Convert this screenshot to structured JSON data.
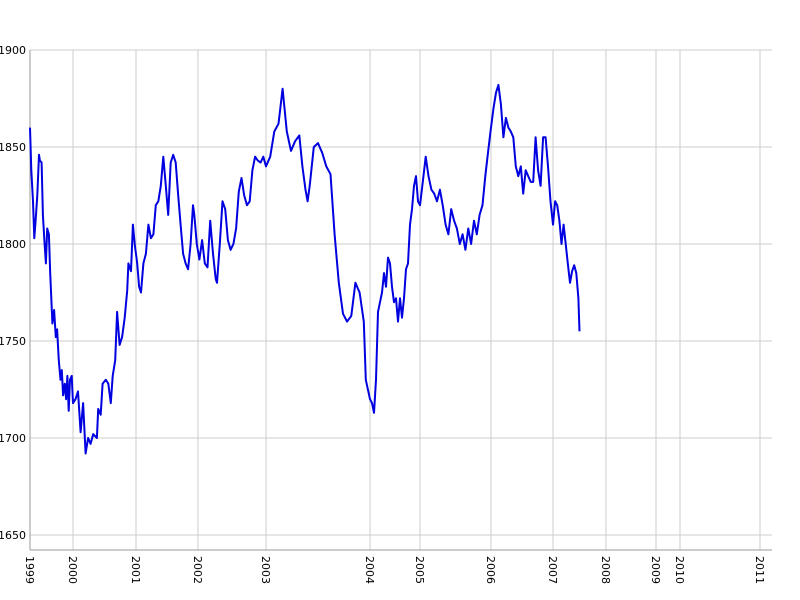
{
  "chart_data": {
    "type": "line",
    "title": "",
    "xlabel": "",
    "ylabel": "",
    "ylim": [
      1645,
      1900
    ],
    "y_ticks": [
      1650,
      1700,
      1750,
      1800,
      1850,
      1900
    ],
    "x_ticks": [
      {
        "x": 1999.0,
        "label": "1999"
      },
      {
        "x": 2000.0,
        "label": "2000"
      },
      {
        "x": 2001.0,
        "label": "2001"
      },
      {
        "x": 2002.0,
        "label": "2002"
      },
      {
        "x": 2003.0,
        "label": "2003"
      },
      {
        "x": 2004.0,
        "label": "2004"
      },
      {
        "x": 2005.0,
        "label": "2005"
      },
      {
        "x": 2006.0,
        "label": "2006"
      },
      {
        "x": 2007.0,
        "label": "2007"
      },
      {
        "x": 2008.0,
        "label": "2008"
      },
      {
        "x": 2009.0,
        "label": "2009"
      },
      {
        "x": 2010.0,
        "label": "2010"
      },
      {
        "x": 2011.0,
        "label": "2011"
      }
    ],
    "grid": true,
    "line_color": "#0000e0",
    "grid_color": "#cccccc",
    "series": [
      {
        "points": [
          [
            1999.0,
            1860
          ],
          [
            1999.03,
            1838
          ],
          [
            1999.07,
            1822
          ],
          [
            1999.1,
            1803
          ],
          [
            1999.13,
            1812
          ],
          [
            1999.17,
            1825
          ],
          [
            1999.21,
            1846
          ],
          [
            1999.23,
            1843
          ],
          [
            1999.27,
            1842
          ],
          [
            1999.3,
            1815
          ],
          [
            1999.34,
            1800
          ],
          [
            1999.37,
            1790
          ],
          [
            1999.4,
            1808
          ],
          [
            1999.44,
            1805
          ],
          [
            1999.47,
            1785
          ],
          [
            1999.52,
            1759
          ],
          [
            1999.56,
            1766
          ],
          [
            1999.6,
            1752
          ],
          [
            1999.63,
            1756
          ],
          [
            1999.67,
            1740
          ],
          [
            1999.71,
            1730
          ],
          [
            1999.74,
            1735
          ],
          [
            1999.77,
            1722
          ],
          [
            1999.81,
            1728
          ],
          [
            1999.84,
            1720
          ],
          [
            1999.87,
            1732
          ],
          [
            1999.9,
            1714
          ],
          [
            1999.93,
            1730
          ],
          [
            1999.97,
            1732
          ],
          [
            2000.0,
            1718
          ],
          [
            2000.04,
            1720
          ],
          [
            2000.08,
            1724
          ],
          [
            2000.12,
            1703
          ],
          [
            2000.16,
            1718
          ],
          [
            2000.2,
            1692
          ],
          [
            2000.24,
            1700
          ],
          [
            2000.28,
            1697
          ],
          [
            2000.32,
            1702
          ],
          [
            2000.38,
            1700
          ],
          [
            2000.4,
            1715
          ],
          [
            2000.44,
            1712
          ],
          [
            2000.47,
            1728
          ],
          [
            2000.52,
            1730
          ],
          [
            2000.56,
            1728
          ],
          [
            2000.6,
            1718
          ],
          [
            2000.63,
            1732
          ],
          [
            2000.67,
            1740
          ],
          [
            2000.7,
            1765
          ],
          [
            2000.74,
            1748
          ],
          [
            2000.78,
            1752
          ],
          [
            2000.82,
            1762
          ],
          [
            2000.86,
            1776
          ],
          [
            2000.88,
            1790
          ],
          [
            2000.92,
            1786
          ],
          [
            2000.95,
            1810
          ],
          [
            2000.98,
            1800
          ],
          [
            2001.02,
            1790
          ],
          [
            2001.05,
            1778
          ],
          [
            2001.08,
            1775
          ],
          [
            2001.12,
            1790
          ],
          [
            2001.16,
            1795
          ],
          [
            2001.2,
            1810
          ],
          [
            2001.24,
            1803
          ],
          [
            2001.28,
            1805
          ],
          [
            2001.32,
            1820
          ],
          [
            2001.36,
            1822
          ],
          [
            2001.4,
            1830
          ],
          [
            2001.44,
            1845
          ],
          [
            2001.48,
            1830
          ],
          [
            2001.52,
            1815
          ],
          [
            2001.56,
            1842
          ],
          [
            2001.6,
            1846
          ],
          [
            2001.64,
            1842
          ],
          [
            2001.68,
            1825
          ],
          [
            2001.72,
            1810
          ],
          [
            2001.76,
            1795
          ],
          [
            2001.8,
            1790
          ],
          [
            2001.84,
            1787
          ],
          [
            2001.88,
            1800
          ],
          [
            2001.92,
            1820
          ],
          [
            2001.94,
            1815
          ],
          [
            2001.98,
            1800
          ],
          [
            2002.02,
            1792
          ],
          [
            2002.06,
            1802
          ],
          [
            2002.1,
            1790
          ],
          [
            2002.14,
            1788
          ],
          [
            2002.18,
            1812
          ],
          [
            2002.22,
            1795
          ],
          [
            2002.26,
            1782
          ],
          [
            2002.28,
            1780
          ],
          [
            2002.32,
            1800
          ],
          [
            2002.36,
            1822
          ],
          [
            2002.4,
            1818
          ],
          [
            2002.44,
            1802
          ],
          [
            2002.48,
            1797
          ],
          [
            2002.52,
            1800
          ],
          [
            2002.56,
            1808
          ],
          [
            2002.6,
            1827
          ],
          [
            2002.64,
            1834
          ],
          [
            2002.68,
            1825
          ],
          [
            2002.72,
            1820
          ],
          [
            2002.76,
            1822
          ],
          [
            2002.8,
            1838
          ],
          [
            2002.84,
            1845
          ],
          [
            2002.88,
            1843
          ],
          [
            2002.92,
            1842
          ],
          [
            2002.96,
            1845
          ],
          [
            2003.0,
            1840
          ],
          [
            2003.04,
            1845
          ],
          [
            2003.08,
            1858
          ],
          [
            2003.12,
            1862
          ],
          [
            2003.16,
            1880
          ],
          [
            2003.2,
            1858
          ],
          [
            2003.24,
            1848
          ],
          [
            2003.28,
            1853
          ],
          [
            2003.32,
            1856
          ],
          [
            2003.35,
            1840
          ],
          [
            2003.38,
            1828
          ],
          [
            2003.4,
            1822
          ],
          [
            2003.42,
            1830
          ],
          [
            2003.46,
            1850
          ],
          [
            2003.5,
            1852
          ],
          [
            2003.54,
            1847
          ],
          [
            2003.58,
            1840
          ],
          [
            2003.62,
            1836
          ],
          [
            2003.66,
            1805
          ],
          [
            2003.7,
            1780
          ],
          [
            2003.74,
            1764
          ],
          [
            2003.78,
            1760
          ],
          [
            2003.82,
            1763
          ],
          [
            2003.86,
            1780
          ],
          [
            2003.9,
            1775
          ],
          [
            2003.94,
            1760
          ],
          [
            2003.96,
            1730
          ],
          [
            2004.0,
            1720
          ],
          [
            2004.04,
            1718
          ],
          [
            2004.08,
            1713
          ],
          [
            2004.12,
            1730
          ],
          [
            2004.16,
            1765
          ],
          [
            2004.2,
            1770
          ],
          [
            2004.24,
            1775
          ],
          [
            2004.28,
            1785
          ],
          [
            2004.32,
            1778
          ],
          [
            2004.36,
            1793
          ],
          [
            2004.4,
            1790
          ],
          [
            2004.44,
            1778
          ],
          [
            2004.48,
            1770
          ],
          [
            2004.52,
            1772
          ],
          [
            2004.56,
            1760
          ],
          [
            2004.6,
            1772
          ],
          [
            2004.64,
            1762
          ],
          [
            2004.68,
            1772
          ],
          [
            2004.72,
            1787
          ],
          [
            2004.76,
            1790
          ],
          [
            2004.8,
            1810
          ],
          [
            2004.84,
            1818
          ],
          [
            2004.88,
            1830
          ],
          [
            2004.92,
            1835
          ],
          [
            2004.96,
            1822
          ],
          [
            2005.0,
            1820
          ],
          [
            2005.04,
            1832
          ],
          [
            2005.08,
            1845
          ],
          [
            2005.12,
            1835
          ],
          [
            2005.16,
            1828
          ],
          [
            2005.2,
            1826
          ],
          [
            2005.24,
            1822
          ],
          [
            2005.28,
            1828
          ],
          [
            2005.32,
            1820
          ],
          [
            2005.36,
            1810
          ],
          [
            2005.4,
            1805
          ],
          [
            2005.44,
            1818
          ],
          [
            2005.48,
            1812
          ],
          [
            2005.52,
            1808
          ],
          [
            2005.56,
            1800
          ],
          [
            2005.6,
            1805
          ],
          [
            2005.64,
            1797
          ],
          [
            2005.68,
            1808
          ],
          [
            2005.72,
            1800
          ],
          [
            2005.76,
            1812
          ],
          [
            2005.8,
            1805
          ],
          [
            2005.84,
            1815
          ],
          [
            2005.88,
            1820
          ],
          [
            2005.92,
            1835
          ],
          [
            2005.96,
            1848
          ],
          [
            2006.0,
            1860
          ],
          [
            2006.04,
            1870
          ],
          [
            2006.08,
            1878
          ],
          [
            2006.12,
            1882
          ],
          [
            2006.16,
            1872
          ],
          [
            2006.2,
            1855
          ],
          [
            2006.24,
            1865
          ],
          [
            2006.28,
            1860
          ],
          [
            2006.32,
            1858
          ],
          [
            2006.36,
            1855
          ],
          [
            2006.4,
            1840
          ],
          [
            2006.44,
            1835
          ],
          [
            2006.48,
            1840
          ],
          [
            2006.52,
            1826
          ],
          [
            2006.56,
            1838
          ],
          [
            2006.6,
            1835
          ],
          [
            2006.64,
            1832
          ],
          [
            2006.68,
            1832
          ],
          [
            2006.72,
            1855
          ],
          [
            2006.76,
            1838
          ],
          [
            2006.8,
            1830
          ],
          [
            2006.84,
            1855
          ],
          [
            2006.88,
            1855
          ],
          [
            2006.92,
            1840
          ],
          [
            2006.96,
            1822
          ],
          [
            2007.0,
            1810
          ],
          [
            2007.04,
            1822
          ],
          [
            2007.08,
            1820
          ],
          [
            2007.12,
            1812
          ],
          [
            2007.16,
            1800
          ],
          [
            2007.2,
            1810
          ],
          [
            2007.24,
            1800
          ],
          [
            2007.28,
            1790
          ],
          [
            2007.32,
            1780
          ],
          [
            2007.36,
            1786
          ],
          [
            2007.4,
            1789
          ],
          [
            2007.44,
            1785
          ],
          [
            2007.48,
            1772
          ],
          [
            2007.5,
            1755
          ]
        ]
      }
    ]
  }
}
